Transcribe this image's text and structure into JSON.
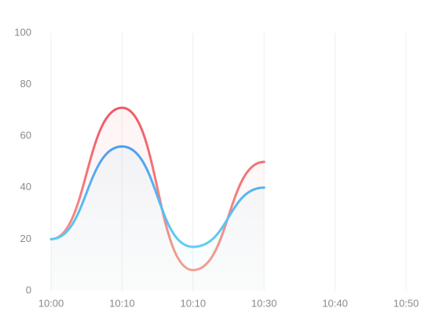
{
  "chart_data": {
    "type": "line",
    "categories": [
      "10:00",
      "10:10",
      "10:10",
      "10:30",
      "10:40",
      "10:50"
    ],
    "series": [
      {
        "color": "#f05a68",
        "gradient": [
          "#f05a68",
          "#f7a796"
        ],
        "values": [
          20,
          71,
          8,
          50,
          null,
          null
        ]
      },
      {
        "color": "#4a8cf0",
        "gradient": [
          "#4a8cf0",
          "#66e4f2"
        ],
        "values": [
          20,
          56,
          17,
          40,
          null,
          null
        ]
      }
    ],
    "ylim": [
      0,
      100
    ],
    "yticks": [
      0,
      20,
      40,
      60,
      80,
      100
    ],
    "grid": true,
    "smooth": true
  }
}
